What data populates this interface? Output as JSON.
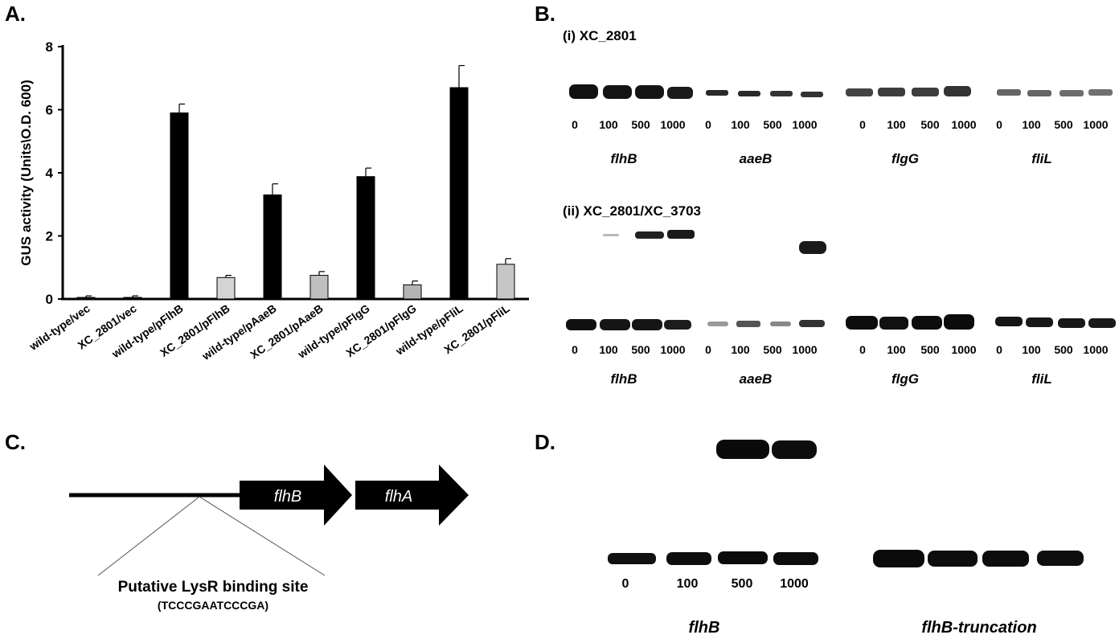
{
  "panels": {
    "a": "A.",
    "b": "B.",
    "c": "C.",
    "d": "D."
  },
  "chart_data": {
    "type": "bar",
    "ylabel": "GUS activity (Units\\O.D. 600)",
    "xlabel": "",
    "ylim": [
      0,
      8
    ],
    "yticks": [
      0,
      2,
      4,
      6,
      8
    ],
    "categories": [
      "wild-type/vec",
      "XC_2801/vec",
      "wild-type/pFlhB",
      "XC_2801/pFlhB",
      "wild-type/pAaeB",
      "XC_2801/pAaeB",
      "wild-type/pFlgG",
      "XC_2801/pFlgG",
      "wild-type/pFliL",
      "XC_2801/pFliL"
    ],
    "values": [
      0.05,
      0.05,
      5.9,
      0.68,
      3.3,
      0.75,
      3.88,
      0.45,
      6.7,
      1.1
    ],
    "errors": [
      0.05,
      0.05,
      0.28,
      0.07,
      0.35,
      0.12,
      0.27,
      0.12,
      0.7,
      0.18
    ],
    "bar_colors": [
      "#000000",
      "#000000",
      "#000000",
      "#d4d4d4",
      "#000000",
      "#c0c0c0",
      "#000000",
      "#b4b4b4",
      "#000000",
      "#c6c6c6"
    ],
    "grid": false
  },
  "gel_b": {
    "title_i": "(i) XC_2801",
    "title_ii": "(ii) XC_2801/XC_3703",
    "lanes": [
      "0",
      "100",
      "500",
      "1000"
    ],
    "genes": [
      "flhB",
      "aaeB",
      "flgG",
      "fliL"
    ]
  },
  "diagram_c": {
    "gene1": "flhB",
    "gene2": "flhA",
    "site_label": "Putative LysR binding site",
    "site_seq": "(TCCCGAATCCCGA)"
  },
  "gel_d": {
    "lanes": [
      "0",
      "100",
      "500",
      "1000"
    ],
    "gene_left": "flhB",
    "gene_right": "flhB-truncation"
  }
}
